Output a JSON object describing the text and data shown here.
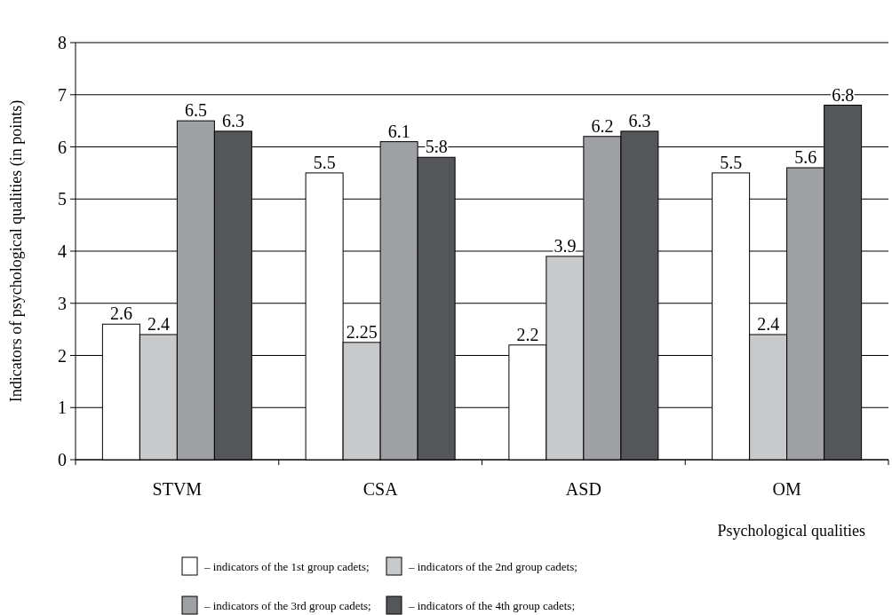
{
  "chart_data": {
    "type": "bar",
    "xlabel": "Psychological qualities",
    "ylabel": "Indicators of  psychological qualities (in points)",
    "categories": [
      "STVM",
      "CSA",
      "ASD",
      "OM"
    ],
    "series": [
      {
        "name": "– indicators of the 1st group cadets;",
        "color": "#ffffff",
        "values": [
          2.6,
          5.5,
          2.2,
          5.5
        ]
      },
      {
        "name": "– indicators of the 2nd group cadets;",
        "color": "#c8c9cb",
        "values": [
          2.4,
          2.25,
          3.9,
          2.4
        ]
      },
      {
        "name": "– indicators of the 3rd group cadets;",
        "color": "#9fa0a3",
        "values": [
          6.5,
          6.1,
          6.2,
          5.6
        ]
      },
      {
        "name": "– indicators of the 4th group cadets;",
        "color": "#55565a",
        "values": [
          6.3,
          5.8,
          6.3,
          6.8
        ]
      }
    ],
    "ylim": [
      0,
      8
    ],
    "yticks": [
      0,
      1,
      2,
      3,
      4,
      5,
      6,
      7,
      8
    ],
    "grid": "y",
    "legend": "bottom",
    "data_labels": true
  }
}
